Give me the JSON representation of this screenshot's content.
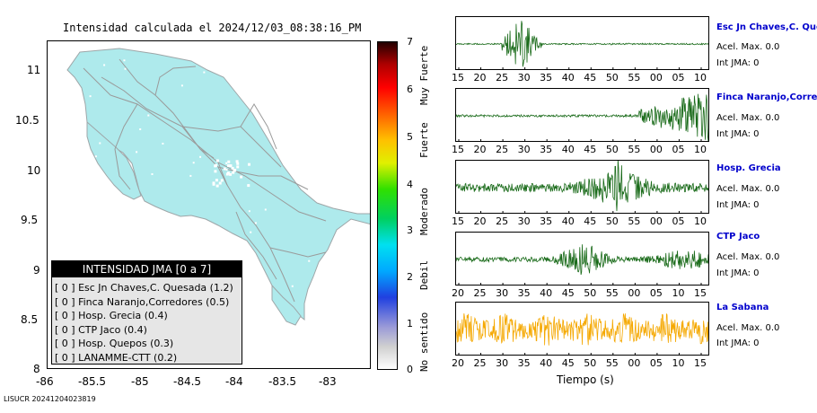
{
  "map": {
    "title": "Intensidad calculada el 2024/12/03_08:38:16_PM",
    "lat_ticks": [
      "11",
      "10.5",
      "10",
      "9.5",
      "9",
      "8.5",
      "8"
    ],
    "lon_ticks": [
      "-86",
      "-85.5",
      "-85",
      "-84.5",
      "-84",
      "-83.5",
      "-83"
    ],
    "land_color": "#aeeaec",
    "road_color": "#9a9a9a"
  },
  "legend": {
    "title": "INTENSIDAD JMA [0 a 7]",
    "items": [
      "[ 0 ]  Esc Jn Chaves,C. Quesada (1.2)",
      "[ 0 ]  Finca Naranjo,Corredores (0.5)",
      "[ 0 ]  Hosp. Grecia (0.4)",
      "[ 0 ]  CTP Jaco (0.4)",
      "[ 0 ]  Hosp. Quepos (0.3)",
      "[ 0 ]  LANAMME-CTT (0.2)"
    ]
  },
  "colorbar": {
    "ticks": [
      "7",
      "6",
      "5",
      "4",
      "3",
      "2",
      "1",
      "0"
    ],
    "labels": [
      "Muy Fuerte",
      "Fuerte",
      "Moderado",
      "Debil",
      "No sentido"
    ]
  },
  "stations": [
    {
      "name": "Esc Jn Chaves,C. Quesada",
      "acel": "Acel. Max. 0.0",
      "jma": "Int JMA: 0",
      "ticks": [
        "15",
        "20",
        "25",
        "30",
        "35",
        "40",
        "45",
        "50",
        "55",
        "00",
        "05",
        "10"
      ],
      "color": "#1a6b1a",
      "profile": "early"
    },
    {
      "name": "Finca Naranjo,Corredores",
      "acel": "Acel. Max. 0.0",
      "jma": "Int JMA: 0",
      "ticks": [
        "15",
        "20",
        "25",
        "30",
        "35",
        "40",
        "45",
        "50",
        "55",
        "00",
        "05",
        "10"
      ],
      "color": "#1a6b1a",
      "profile": "late"
    },
    {
      "name": "Hosp. Grecia",
      "acel": "Acel. Max. 0.0",
      "jma": "Int JMA: 0",
      "ticks": [
        "15",
        "20",
        "25",
        "30",
        "35",
        "40",
        "45",
        "50",
        "55",
        "00",
        "05",
        "10"
      ],
      "color": "#1a6b1a",
      "profile": "mid"
    },
    {
      "name": "CTP Jaco",
      "acel": "Acel. Max. 0.0",
      "jma": "Int JMA: 0",
      "ticks": [
        "20",
        "25",
        "30",
        "35",
        "40",
        "45",
        "50",
        "55",
        "00",
        "05",
        "10",
        "15"
      ],
      "color": "#1a6b1a",
      "profile": "jaco"
    },
    {
      "name": "La Sabana",
      "acel": "Acel. Max. 0.0",
      "jma": "Int JMA: 0",
      "ticks": [
        "20",
        "25",
        "30",
        "35",
        "40",
        "45",
        "50",
        "55",
        "00",
        "05",
        "10",
        "15"
      ],
      "color": "#f5a800",
      "profile": "noise"
    }
  ],
  "xlabel": "Tiempo (s)",
  "footer_id": "LISUCR 20241204023819"
}
